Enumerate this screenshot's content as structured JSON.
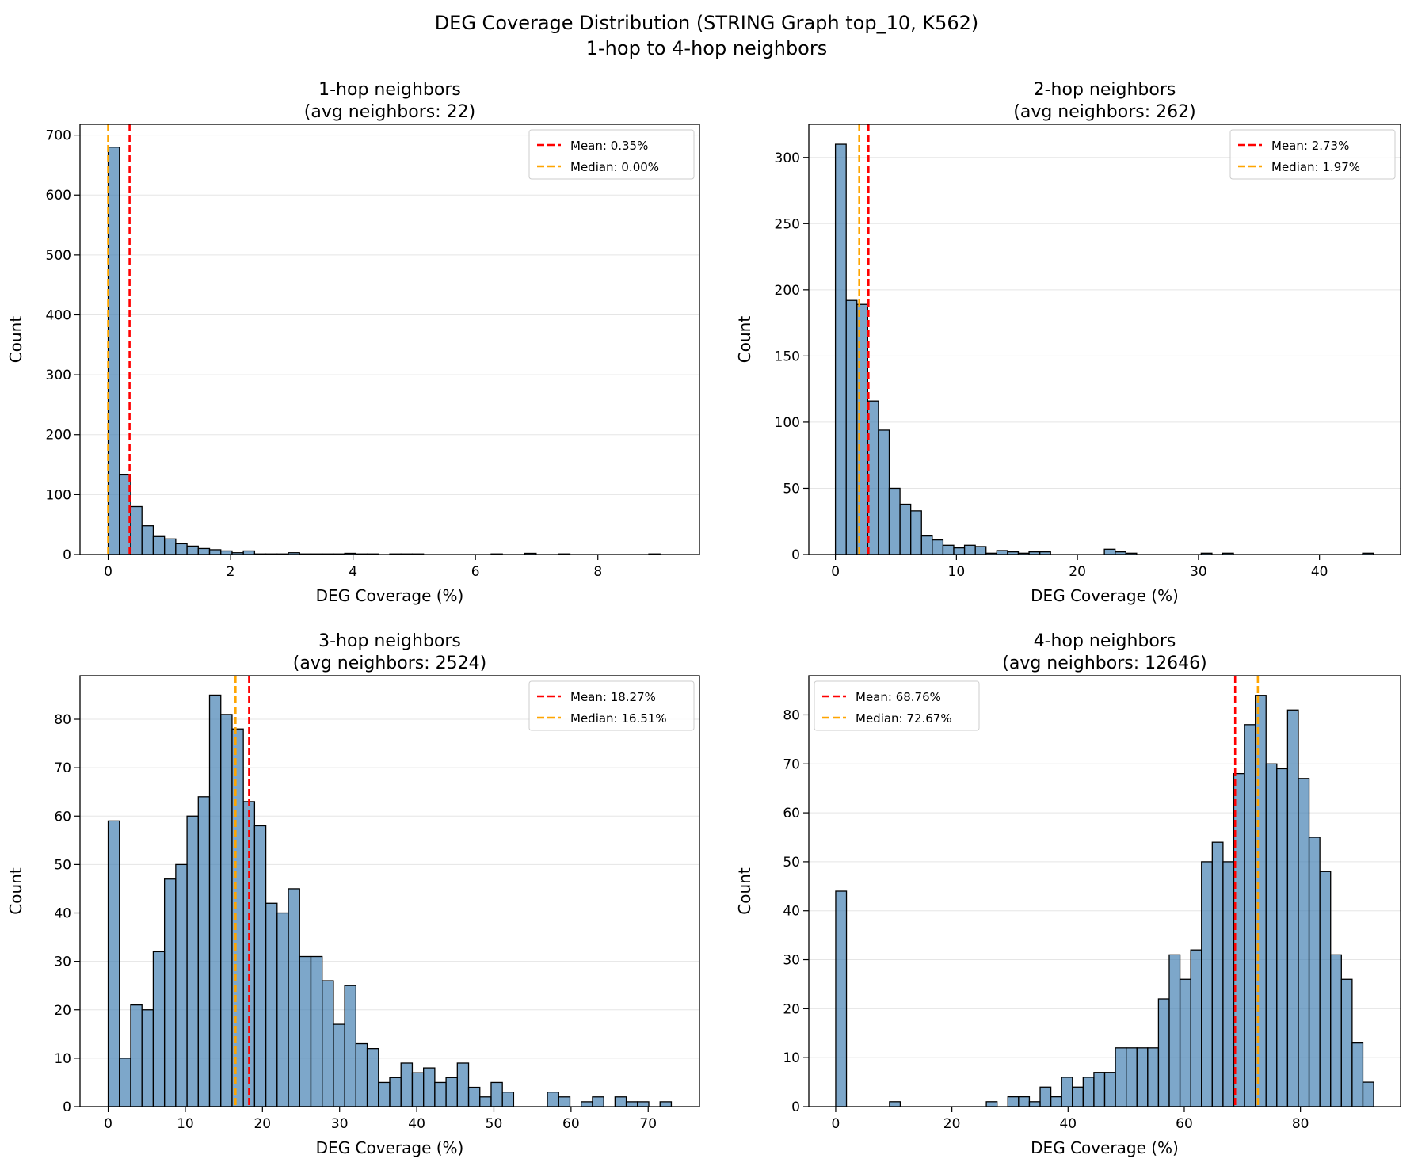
{
  "figure": {
    "title_line1": "DEG Coverage Distribution (STRING Graph top_10, K562)",
    "title_line2": "1-hop to 4-hop neighbors"
  },
  "colors": {
    "bar_fill": "#4682b4",
    "bar_edge": "#000000",
    "mean_line": "#ff0000",
    "median_line": "#ffa500",
    "grid": "#e5e5e5"
  },
  "chart_data": [
    {
      "type": "bar",
      "title_line1": "1-hop neighbors",
      "title_line2": "(avg neighbors: 22)",
      "xlabel": "DEG Coverage (%)",
      "ylabel": "Count",
      "xlim": [
        -0.46,
        9.66
      ],
      "ylim": [
        0,
        718
      ],
      "xticks": [
        0,
        2,
        4,
        6,
        8
      ],
      "yticks": [
        0,
        100,
        200,
        300,
        400,
        500,
        600,
        700
      ],
      "bin_start": 0.0,
      "bin_width": 0.184,
      "counts": [
        680,
        133,
        80,
        48,
        30,
        26,
        18,
        14,
        10,
        8,
        6,
        3,
        6,
        1,
        1,
        1,
        3,
        1,
        1,
        1,
        1,
        2,
        1,
        1,
        0,
        1,
        1,
        1,
        0,
        0,
        0,
        0,
        0,
        0,
        1,
        0,
        0,
        2,
        0,
        0,
        1,
        0,
        0,
        0,
        0,
        0,
        0,
        0,
        1,
        0
      ],
      "mean": 0.35,
      "median": 0.0,
      "mean_label": "Mean: 0.35%",
      "median_label": "Median: 0.00%",
      "legend": "top-right"
    },
    {
      "type": "bar",
      "title_line1": "2-hop neighbors",
      "title_line2": "(avg neighbors: 262)",
      "xlabel": "DEG Coverage (%)",
      "ylabel": "Count",
      "xlim": [
        -2.2,
        46.7
      ],
      "ylim": [
        0,
        325
      ],
      "xticks": [
        0,
        10,
        20,
        30,
        40
      ],
      "yticks": [
        0,
        50,
        100,
        150,
        200,
        250,
        300
      ],
      "bin_start": 0.0,
      "bin_width": 0.889,
      "counts": [
        310,
        192,
        189,
        116,
        94,
        50,
        38,
        33,
        14,
        11,
        7,
        5,
        7,
        6,
        1,
        3,
        2,
        1,
        2,
        2,
        0,
        0,
        0,
        0,
        0,
        4,
        2,
        1,
        0,
        0,
        0,
        0,
        0,
        0,
        1,
        0,
        1,
        0,
        0,
        0,
        0,
        0,
        0,
        0,
        0,
        0,
        0,
        0,
        0,
        1
      ],
      "mean": 2.73,
      "median": 1.97,
      "mean_label": "Mean: 2.73%",
      "median_label": "Median: 1.97%",
      "legend": "top-right"
    },
    {
      "type": "bar",
      "title_line1": "3-hop neighbors",
      "title_line2": "(avg neighbors: 2524)",
      "xlabel": "DEG Coverage (%)",
      "ylabel": "Count",
      "xlim": [
        -3.65,
        76.65
      ],
      "ylim": [
        0,
        89
      ],
      "xticks": [
        0,
        10,
        20,
        30,
        40,
        50,
        60,
        70
      ],
      "yticks": [
        0,
        10,
        20,
        30,
        40,
        50,
        60,
        70,
        80
      ],
      "bin_start": 0.0,
      "bin_width": 1.46,
      "counts": [
        59,
        10,
        21,
        20,
        32,
        47,
        50,
        60,
        64,
        85,
        81,
        78,
        63,
        58,
        42,
        40,
        45,
        31,
        31,
        26,
        17,
        25,
        13,
        12,
        5,
        6,
        9,
        7,
        8,
        5,
        6,
        9,
        4,
        2,
        5,
        3,
        0,
        0,
        0,
        3,
        2,
        0,
        1,
        2,
        0,
        2,
        1,
        1,
        0,
        1
      ],
      "mean": 18.27,
      "median": 16.51,
      "mean_label": "Mean: 18.27%",
      "median_label": "Median: 16.51%",
      "legend": "top-right"
    },
    {
      "type": "bar",
      "title_line1": "4-hop neighbors",
      "title_line2": "(avg neighbors: 12646)",
      "xlabel": "DEG Coverage (%)",
      "ylabel": "Count",
      "xlim": [
        -4.63,
        97.23
      ],
      "ylim": [
        0,
        88
      ],
      "xticks": [
        0,
        20,
        40,
        60,
        80
      ],
      "yticks": [
        0,
        10,
        20,
        30,
        40,
        50,
        60,
        70,
        80
      ],
      "bin_start": 0.0,
      "bin_width": 1.852,
      "counts": [
        44,
        0,
        0,
        0,
        0,
        1,
        0,
        0,
        0,
        0,
        0,
        0,
        0,
        0,
        1,
        0,
        2,
        2,
        1,
        4,
        2,
        6,
        4,
        6,
        7,
        7,
        12,
        12,
        12,
        12,
        22,
        31,
        26,
        32,
        50,
        54,
        50,
        68,
        78,
        84,
        70,
        69,
        81,
        67,
        55,
        48,
        31,
        26,
        13,
        5
      ],
      "mean": 68.76,
      "median": 72.67,
      "mean_label": "Mean: 68.76%",
      "median_label": "Median: 72.67%",
      "legend": "top-left"
    }
  ]
}
